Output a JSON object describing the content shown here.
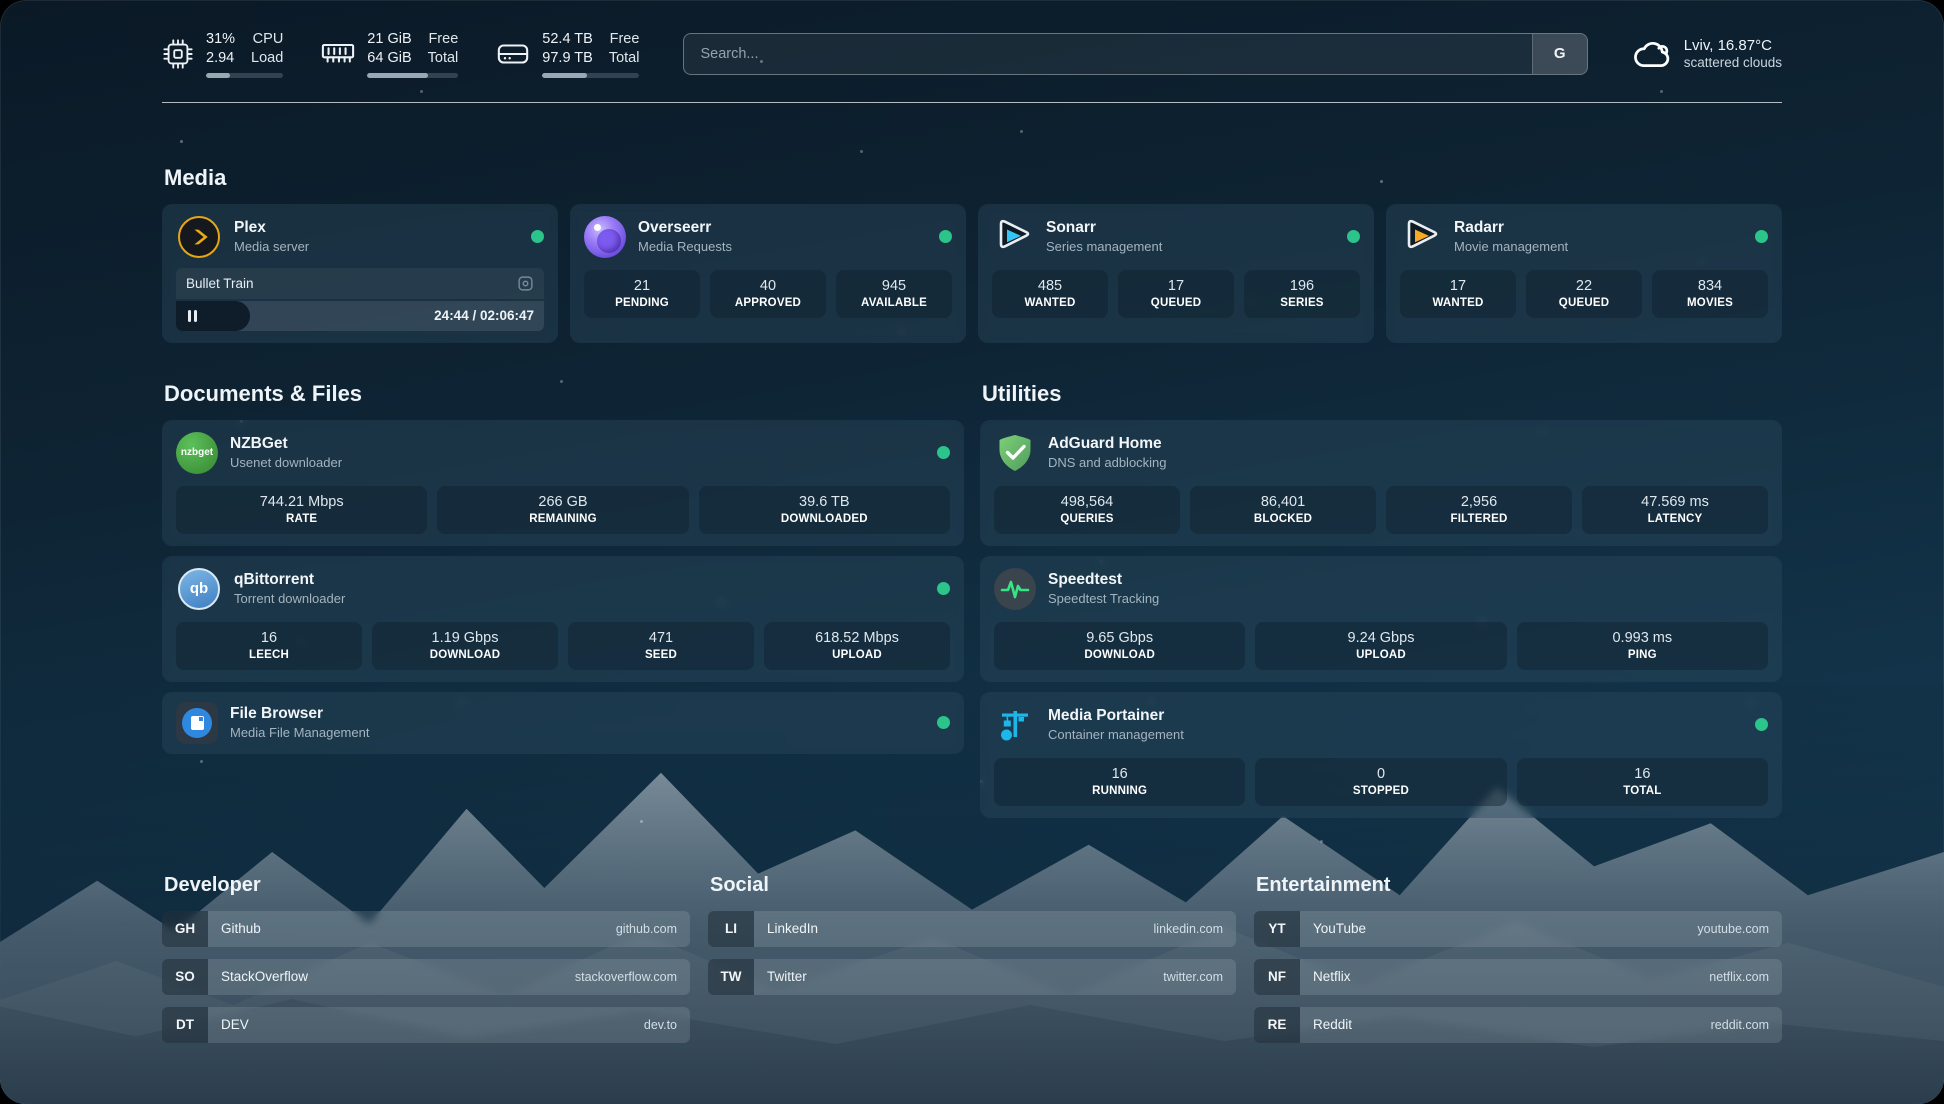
{
  "topbar": {
    "cpu": {
      "value_top": "31%",
      "value_bottom": "2.94",
      "label_top": "CPU",
      "label_bottom": "Load",
      "percent": 31
    },
    "memory": {
      "value_top": "21 GiB",
      "value_bottom": "64 GiB",
      "label_top": "Free",
      "label_bottom": "Total",
      "percent": 67
    },
    "disk": {
      "value_top": "52.4 TB",
      "value_bottom": "97.9 TB",
      "label_top": "Free",
      "label_bottom": "Total",
      "percent": 46
    },
    "search": {
      "placeholder": "Search...",
      "provider_button": "G"
    },
    "weather": {
      "location_temp": "Lviv, 16.87°C",
      "condition": "scattered clouds"
    }
  },
  "sections": {
    "media": "Media",
    "documents": "Documents & Files",
    "utilities": "Utilities"
  },
  "services": {
    "plex": {
      "name": "Plex",
      "desc": "Media server",
      "online": true,
      "stream": {
        "title": "Bullet Train",
        "time": "24:44 / 02:06:47",
        "progress_percent": 20
      }
    },
    "overseerr": {
      "name": "Overseerr",
      "desc": "Media Requests",
      "online": true,
      "stats": [
        {
          "value": "21",
          "label": "PENDING"
        },
        {
          "value": "40",
          "label": "APPROVED"
        },
        {
          "value": "945",
          "label": "AVAILABLE"
        }
      ]
    },
    "sonarr": {
      "name": "Sonarr",
      "desc": "Series management",
      "online": true,
      "stats": [
        {
          "value": "485",
          "label": "WANTED"
        },
        {
          "value": "17",
          "label": "QUEUED"
        },
        {
          "value": "196",
          "label": "SERIES"
        }
      ]
    },
    "radarr": {
      "name": "Radarr",
      "desc": "Movie management",
      "online": true,
      "stats": [
        {
          "value": "17",
          "label": "WANTED"
        },
        {
          "value": "22",
          "label": "QUEUED"
        },
        {
          "value": "834",
          "label": "MOVIES"
        }
      ]
    },
    "nzbget": {
      "name": "NZBGet",
      "desc": "Usenet downloader",
      "online": true,
      "stats": [
        {
          "value": "744.21 Mbps",
          "label": "RATE"
        },
        {
          "value": "266 GB",
          "label": "REMAINING"
        },
        {
          "value": "39.6 TB",
          "label": "DOWNLOADED"
        }
      ]
    },
    "qbittorrent": {
      "name": "qBittorrent",
      "desc": "Torrent downloader",
      "online": true,
      "stats": [
        {
          "value": "16",
          "label": "LEECH"
        },
        {
          "value": "1.19 Gbps",
          "label": "DOWNLOAD"
        },
        {
          "value": "471",
          "label": "SEED"
        },
        {
          "value": "618.52 Mbps",
          "label": "UPLOAD"
        }
      ]
    },
    "filebrowser": {
      "name": "File Browser",
      "desc": "Media File Management",
      "online": true
    },
    "adguard": {
      "name": "AdGuard Home",
      "desc": "DNS and adblocking",
      "online": false,
      "stats": [
        {
          "value": "498,564",
          "label": "QUERIES"
        },
        {
          "value": "86,401",
          "label": "BLOCKED"
        },
        {
          "value": "2,956",
          "label": "FILTERED"
        },
        {
          "value": "47.569 ms",
          "label": "LATENCY"
        }
      ]
    },
    "speedtest": {
      "name": "Speedtest",
      "desc": "Speedtest Tracking",
      "online": false,
      "stats": [
        {
          "value": "9.65 Gbps",
          "label": "DOWNLOAD"
        },
        {
          "value": "9.24 Gbps",
          "label": "UPLOAD"
        },
        {
          "value": "0.993 ms",
          "label": "PING"
        }
      ]
    },
    "portainer": {
      "name": "Media Portainer",
      "desc": "Container management",
      "online": true,
      "stats": [
        {
          "value": "16",
          "label": "RUNNING"
        },
        {
          "value": "0",
          "label": "STOPPED"
        },
        {
          "value": "16",
          "label": "TOTAL"
        }
      ]
    }
  },
  "icon_labels": {
    "nzbget": "nzbget",
    "qbittorrent": "qb"
  },
  "bookmarks": {
    "developer": {
      "title": "Developer",
      "items": [
        {
          "abbr": "GH",
          "name": "Github",
          "domain": "github.com"
        },
        {
          "abbr": "SO",
          "name": "StackOverflow",
          "domain": "stackoverflow.com"
        },
        {
          "abbr": "DT",
          "name": "DEV",
          "domain": "dev.to"
        }
      ]
    },
    "social": {
      "title": "Social",
      "items": [
        {
          "abbr": "LI",
          "name": "LinkedIn",
          "domain": "linkedin.com"
        },
        {
          "abbr": "TW",
          "name": "Twitter",
          "domain": "twitter.com"
        }
      ]
    },
    "entertainment": {
      "title": "Entertainment",
      "items": [
        {
          "abbr": "YT",
          "name": "YouTube",
          "domain": "youtube.com"
        },
        {
          "abbr": "NF",
          "name": "Netflix",
          "domain": "netflix.com"
        },
        {
          "abbr": "RE",
          "name": "Reddit",
          "domain": "reddit.com"
        }
      ]
    }
  },
  "colors": {
    "status_online": "#2bc48a",
    "plex": "#e7a615",
    "overseerr": "#8b5cf6",
    "sonarr": "#35c5f4",
    "radarr": "#f7a824",
    "nzbget": "#43a047",
    "qbittorrent": "#4b8fce",
    "filebrowser": "#2f88e0",
    "adguard": "#68bc71",
    "speedtest": "#35e584",
    "portainer": "#1db6e9"
  }
}
